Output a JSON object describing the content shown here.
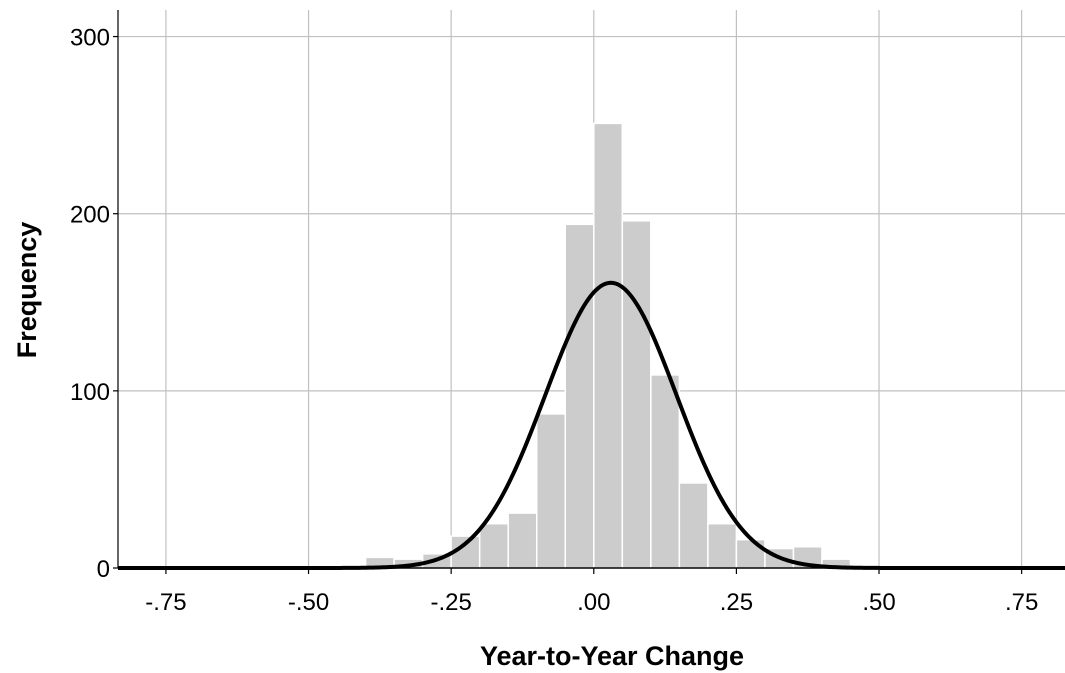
{
  "chart_data": {
    "type": "bar",
    "subtype": "histogram",
    "title": "",
    "xlabel": "Year-to-Year Change",
    "ylabel": "Frequency",
    "xlim": [
      -0.834,
      0.826
    ],
    "ylim": [
      0,
      315
    ],
    "x_ticks": [
      -0.75,
      -0.5,
      -0.25,
      0.0,
      0.25,
      0.5,
      0.75
    ],
    "x_tick_labels": [
      "-.75",
      "-.50",
      "-.25",
      ".00",
      ".25",
      ".50",
      ".75"
    ],
    "y_ticks": [
      0,
      100,
      200,
      300
    ],
    "y_tick_labels": [
      "0",
      "100",
      "200",
      "300"
    ],
    "grid": true,
    "bin_width": 0.05,
    "bins": [
      {
        "start": -0.4,
        "end": -0.35,
        "count": 6
      },
      {
        "start": -0.35,
        "end": -0.3,
        "count": 5
      },
      {
        "start": -0.3,
        "end": -0.25,
        "count": 8
      },
      {
        "start": -0.25,
        "end": -0.2,
        "count": 18
      },
      {
        "start": -0.2,
        "end": -0.15,
        "count": 25
      },
      {
        "start": -0.15,
        "end": -0.1,
        "count": 31
      },
      {
        "start": -0.1,
        "end": -0.05,
        "count": 87
      },
      {
        "start": -0.05,
        "end": 0.0,
        "count": 194
      },
      {
        "start": 0.0,
        "end": 0.05,
        "count": 251
      },
      {
        "start": 0.05,
        "end": 0.1,
        "count": 196
      },
      {
        "start": 0.1,
        "end": 0.15,
        "count": 109
      },
      {
        "start": 0.15,
        "end": 0.2,
        "count": 48
      },
      {
        "start": 0.2,
        "end": 0.25,
        "count": 25
      },
      {
        "start": 0.25,
        "end": 0.3,
        "count": 16
      },
      {
        "start": 0.3,
        "end": 0.35,
        "count": 11
      },
      {
        "start": 0.35,
        "end": 0.4,
        "count": 12
      },
      {
        "start": 0.4,
        "end": 0.45,
        "count": 5
      }
    ],
    "normal_curve": {
      "mean": 0.03,
      "sd": 0.115,
      "peak": 161
    },
    "colors": {
      "bar": "#cccccc",
      "bar_edge": "#ffffff",
      "curve": "#000000",
      "grid": "#c0c0c0",
      "axis": "#000000"
    }
  }
}
